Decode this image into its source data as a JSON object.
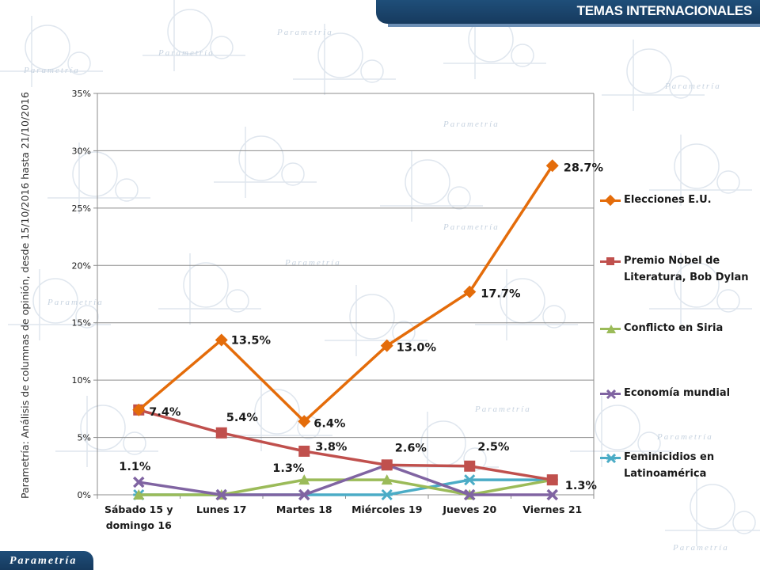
{
  "header": {
    "title": "TEMAS INTERNACIONALES"
  },
  "side_label": "Parametría: Análisis de columnas de opinión, desde 15/10/2016 hasta  21/10/2016",
  "footer": {
    "brand": "Parametría"
  },
  "watermark": {
    "brand": "Parametría"
  },
  "colors": {
    "elecciones": "#e46c0a",
    "nobel": "#c0504d",
    "siria": "#9bbb59",
    "economia": "#8064a2",
    "feminicidios": "#4bacc6",
    "header_bg": "#1f4e79"
  },
  "chart_data": {
    "type": "line",
    "title": "TEMAS INTERNACIONALES",
    "categories": [
      [
        "Sábado 15 y",
        "domingo 16"
      ],
      [
        "Lunes 17"
      ],
      [
        "Martes 18"
      ],
      [
        "Miércoles 19"
      ],
      [
        "Jueves 20"
      ],
      [
        "Viernes 21"
      ]
    ],
    "ylim": [
      0,
      35
    ],
    "yticks": [
      "0%",
      "5%",
      "10%",
      "15%",
      "20%",
      "25%",
      "30%",
      "35%"
    ],
    "grid": true,
    "legend_position": "right",
    "series": [
      {
        "name": "Elecciones E.U.",
        "color": "#e46c0a",
        "marker": "diamond",
        "values": [
          7.4,
          13.5,
          6.4,
          13.0,
          17.7,
          28.7
        ],
        "labels": [
          "",
          "13.5%",
          "6.4%",
          "13.0%",
          "17.7%",
          "28.7%"
        ]
      },
      {
        "name": "Premio Nobel de Literatura, Bob Dylan",
        "color": "#c0504d",
        "marker": "square",
        "values": [
          7.4,
          5.4,
          3.8,
          2.6,
          2.5,
          1.3
        ],
        "labels": [
          "7.4%",
          "5.4%",
          "3.8%",
          "",
          "2.5%",
          "1.3%"
        ]
      },
      {
        "name": "Conflicto en Siria",
        "color": "#9bbb59",
        "marker": "triangle",
        "values": [
          0,
          0,
          1.3,
          1.3,
          0,
          1.3
        ],
        "labels": [
          "",
          "",
          "1.3%",
          "",
          "",
          ""
        ]
      },
      {
        "name": "Economía mundial",
        "color": "#8064a2",
        "marker": "x",
        "values": [
          1.1,
          0,
          0,
          2.6,
          0,
          0
        ],
        "labels": [
          "1.1%",
          "",
          "",
          "2.6%",
          "",
          ""
        ]
      },
      {
        "name": "Feminicidios en Latinoamérica",
        "color": "#4bacc6",
        "marker": "star",
        "values": [
          0,
          0,
          0,
          0,
          1.3,
          1.3
        ],
        "labels": [
          "",
          "",
          "",
          "",
          "",
          ""
        ]
      }
    ],
    "legend_lines": [
      [
        "Elecciones E.U."
      ],
      [
        "Premio Nobel de",
        "Literatura, Bob Dylan"
      ],
      [
        "Conflicto en Siria"
      ],
      [
        "Economía mundial"
      ],
      [
        "Feminicidios en",
        "Latinoamérica"
      ]
    ]
  }
}
